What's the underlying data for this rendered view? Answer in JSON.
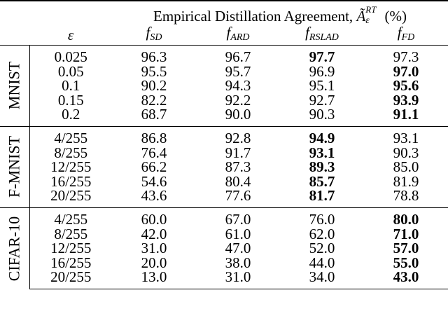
{
  "table": {
    "title_text": "Empirical Distillation Agreement, ",
    "title_symbol": "Ã",
    "title_sup": "RT",
    "title_sub": "ε",
    "title_unit": " (%)",
    "eps_header": "ε",
    "columns": [
      {
        "main": "f",
        "sub": "SD"
      },
      {
        "main": "f",
        "sub": "ARD"
      },
      {
        "main": "f",
        "sub": "RSLAD"
      },
      {
        "main": "f",
        "sub": "FD"
      }
    ],
    "groups": [
      {
        "name": "MNIST",
        "rows": [
          {
            "eps": "0.025",
            "values": [
              "96.3",
              "96.7",
              "97.7",
              "97.3"
            ],
            "bold": [
              false,
              false,
              true,
              false
            ]
          },
          {
            "eps": "0.05",
            "values": [
              "95.5",
              "95.7",
              "96.9",
              "97.0"
            ],
            "bold": [
              false,
              false,
              false,
              true
            ]
          },
          {
            "eps": "0.1",
            "values": [
              "90.2",
              "94.3",
              "95.1",
              "95.6"
            ],
            "bold": [
              false,
              false,
              false,
              true
            ]
          },
          {
            "eps": "0.15",
            "values": [
              "82.2",
              "92.2",
              "92.7",
              "93.9"
            ],
            "bold": [
              false,
              false,
              false,
              true
            ]
          },
          {
            "eps": "0.2",
            "values": [
              "68.7",
              "90.0",
              "90.3",
              "91.1"
            ],
            "bold": [
              false,
              false,
              false,
              true
            ]
          }
        ]
      },
      {
        "name": "F-MNIST",
        "rows": [
          {
            "eps": "4/255",
            "values": [
              "86.8",
              "92.8",
              "94.9",
              "93.1"
            ],
            "bold": [
              false,
              false,
              true,
              false
            ]
          },
          {
            "eps": "8/255",
            "values": [
              "76.4",
              "91.7",
              "93.1",
              "90.3"
            ],
            "bold": [
              false,
              false,
              true,
              false
            ]
          },
          {
            "eps": "12/255",
            "values": [
              "66.2",
              "87.3",
              "89.3",
              "85.0"
            ],
            "bold": [
              false,
              false,
              true,
              false
            ]
          },
          {
            "eps": "16/255",
            "values": [
              "54.6",
              "80.4",
              "85.7",
              "81.9"
            ],
            "bold": [
              false,
              false,
              true,
              false
            ]
          },
          {
            "eps": "20/255",
            "values": [
              "43.6",
              "77.6",
              "81.7",
              "78.8"
            ],
            "bold": [
              false,
              false,
              true,
              false
            ]
          }
        ]
      },
      {
        "name": "CIFAR-10",
        "rows": [
          {
            "eps": "4/255",
            "values": [
              "60.0",
              "67.0",
              "76.0",
              "80.0"
            ],
            "bold": [
              false,
              false,
              false,
              true
            ]
          },
          {
            "eps": "8/255",
            "values": [
              "42.0",
              "61.0",
              "62.0",
              "71.0"
            ],
            "bold": [
              false,
              false,
              false,
              true
            ]
          },
          {
            "eps": "12/255",
            "values": [
              "31.0",
              "47.0",
              "52.0",
              "57.0"
            ],
            "bold": [
              false,
              false,
              false,
              true
            ]
          },
          {
            "eps": "16/255",
            "values": [
              "20.0",
              "38.0",
              "44.0",
              "55.0"
            ],
            "bold": [
              false,
              false,
              false,
              true
            ]
          },
          {
            "eps": "20/255",
            "values": [
              "13.0",
              "31.0",
              "34.0",
              "43.0"
            ],
            "bold": [
              false,
              false,
              false,
              true
            ]
          }
        ]
      }
    ]
  }
}
